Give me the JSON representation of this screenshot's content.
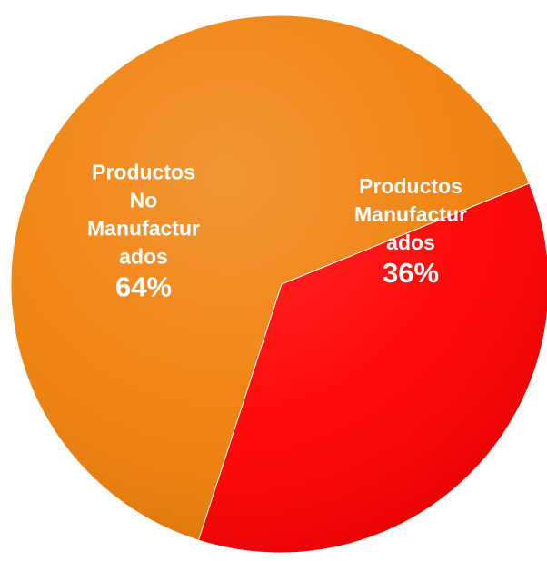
{
  "chart_data": {
    "type": "pie",
    "slices": [
      {
        "label_lines": [
          "Productos",
          "No",
          "Manufactur",
          "ados"
        ],
        "value": 64,
        "value_label": "64%",
        "color": "#f07f09"
      },
      {
        "label_lines": [
          "Productos",
          "Manufactur",
          "ados"
        ],
        "value": 36,
        "value_label": "36%",
        "color": "#ff0000"
      }
    ],
    "start_angle_deg": 22,
    "direction": "counterclockwise",
    "labels_inside": true
  }
}
